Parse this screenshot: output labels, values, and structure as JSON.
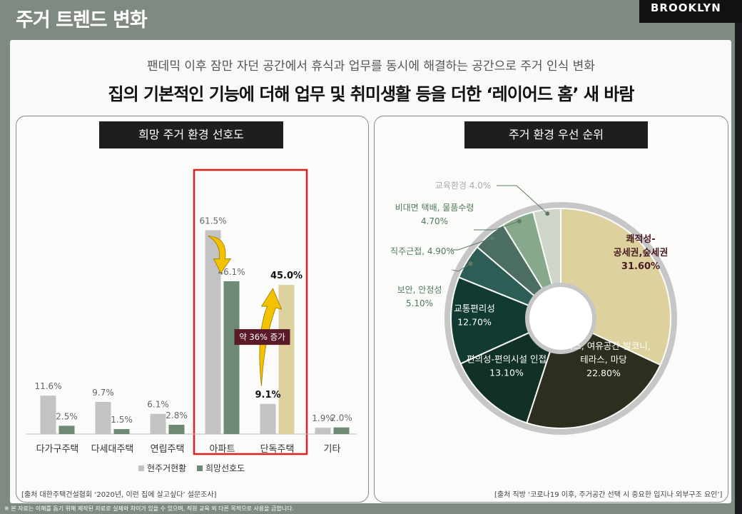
{
  "header": {
    "title": "주거 트렌드 변화",
    "logo": "BROOKLYN"
  },
  "subtitle": "팬데믹 이후 잠만 자던 공간에서 휴식과 업무를 동시에 해결하는 공간으로 주거 인식 변화",
  "headline": "집의 기본적인 기능에 더해 업무 및 취미생활 등을 더한 ‘레이어드 홈’ 새 바람",
  "left_panel": {
    "title": "희망 주거 환경 선호도",
    "source": "[출처 대한주택건설협회 ‘2020년, 이런 집에 살고싶다’ 설문조사]",
    "annotation": "약 36% 증가"
  },
  "right_panel": {
    "title": "주거 환경 우선 순위",
    "source": "[출처 직방 ‘코로나19 이후, 주거공간 선택 시 중요한 입지나 외부구조 요인’]"
  },
  "footnote": "※ 본 자료는 이해를 돕기 위해 제작된 자료로 실제와 차이가 있을 수 있으며, 직원 교육 외 다른 목적으로 사용을 금합니다.",
  "colors": {
    "current": "#c3c3c3",
    "hope": "#6e8a74",
    "hope_house": "#ddd29e",
    "highlight_box": "#e02020",
    "badge": "#5a1a28",
    "arrow": "#f2c200"
  },
  "chart_data": [
    {
      "type": "bar",
      "categories": [
        "다가구주택",
        "다세대주택",
        "연립주택",
        "아파트",
        "단독주택",
        "기타"
      ],
      "series": [
        {
          "name": "현주거현황",
          "values": [
            11.6,
            9.7,
            6.1,
            61.5,
            9.1,
            1.9
          ],
          "labels": [
            "11.6%",
            "9.7%",
            "6.1%",
            "61.5%",
            "9.1%",
            "1.9%"
          ]
        },
        {
          "name": "희망선호도",
          "values": [
            2.5,
            1.5,
            2.8,
            46.1,
            45.0,
            2.0
          ],
          "labels": [
            "2.5%",
            "1.5%",
            "2.8%",
            "46.1%",
            "45.0%",
            "2.0%"
          ]
        }
      ],
      "ylim": [
        0,
        70
      ],
      "legend": "bottom",
      "highlight": [
        "아파트",
        "단독주택"
      ]
    },
    {
      "type": "pie",
      "labels": [
        "쾌적성-공세권,숲세권",
        "서비스, 여유공간-발코니, 테라스, 마당",
        "편의성-편의시설 인접",
        "교통편리성",
        "보안, 안정성",
        "직주근접",
        "비대면 택배, 물품수령",
        "교육환경"
      ],
      "values": [
        31.6,
        22.8,
        13.1,
        12.7,
        5.1,
        4.9,
        4.7,
        4.0
      ],
      "label_lines": [
        [
          "쾌적성-",
          "공세권,숲세권",
          "31.60%"
        ],
        [
          "서비스, 여유공간-발코니,",
          "테라스, 마당",
          "22.80%"
        ],
        [
          "편의성-편의시설 인접",
          "13.10%"
        ],
        [
          "교통편리성",
          "12.70%"
        ],
        [
          "보안, 안정성",
          "5.10%"
        ],
        [
          "직주근접, 4.90%"
        ],
        [
          "비대면 택배, 물품수령",
          "4.70%"
        ],
        [
          "교육환경 4.0%"
        ]
      ],
      "colors": [
        "#ddd29e",
        "#2c2f1e",
        "#123126",
        "#113b32",
        "#2d5e55",
        "#4b6d62",
        "#86a98b",
        "#cfd5cb"
      ],
      "donut": true
    }
  ]
}
